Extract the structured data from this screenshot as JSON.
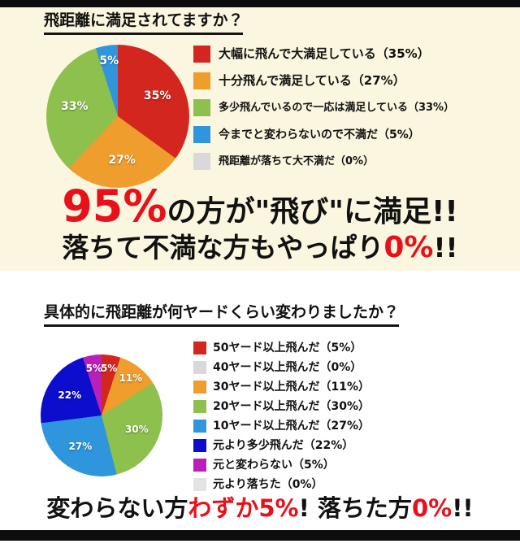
{
  "colors": {
    "accent_red": "#e8101a",
    "cream_background": "#fbf6df",
    "bar_black": "#0d0d0d"
  },
  "chart_data": [
    {
      "type": "pie",
      "title": "飛距離に満足されてますか？",
      "legend_position": "right",
      "slices": [
        {
          "label": "大幅に飛んで大満足している（35%）",
          "value": 35,
          "color": "#d3261f",
          "pct_label": "35%",
          "label_size": 15
        },
        {
          "label": "十分飛んで満足している（27%）",
          "value": 27,
          "color": "#ef9d2c",
          "pct_label": "27%",
          "label_size": 15
        },
        {
          "label": "多少飛んでいるので一応は満足している（33%）",
          "value": 33,
          "color": "#8ec04e",
          "pct_label": "33%",
          "label_size": 13
        },
        {
          "label": "今までと変わらないので不満だ（5%）",
          "value": 5,
          "color": "#2f96dd",
          "pct_label": "5%",
          "label_size": 14
        },
        {
          "label": "飛距離が落ちて大不満だ（0%）",
          "value": 0,
          "color": "#d9d9d9",
          "pct_label": null,
          "label_size": 13
        }
      ]
    },
    {
      "type": "pie",
      "title": "具体的に飛距離が何ヤードくらい変わりましたか？",
      "legend_position": "right",
      "slices": [
        {
          "label": "50ヤード以上飛んだ（5%）",
          "value": 5,
          "color": "#d3261f",
          "pct_label": "5%"
        },
        {
          "label": "40ヤード以上飛んだ（0%）",
          "value": 0,
          "color": "#d9d9d9",
          "pct_label": null
        },
        {
          "label": "30ヤード以上飛んだ（11%）",
          "value": 11,
          "color": "#ef9d2c",
          "pct_label": "11%"
        },
        {
          "label": "20ヤード以上飛んだ（30%）",
          "value": 30,
          "color": "#8ec04e",
          "pct_label": "30%"
        },
        {
          "label": "10ヤード以上飛んだ（27%）",
          "value": 27,
          "color": "#2f96dd",
          "pct_label": "27%"
        },
        {
          "label": "元より多少飛んだ（22%）",
          "value": 22,
          "color": "#0d0dcd",
          "pct_label": "22%"
        },
        {
          "label": "元と変わらない（5%）",
          "value": 5,
          "color": "#b91fb9",
          "pct_label": "5%"
        },
        {
          "label": "元より落ちた（0%）",
          "value": 0,
          "color": "#e3e3e3",
          "pct_label": null
        }
      ]
    }
  ],
  "headline1": {
    "runs": [
      {
        "text": "95%",
        "color": "#e8101a",
        "size": 54
      },
      {
        "text": "の方が\"飛び\"に満足!!",
        "color": "#111111",
        "size": 36
      }
    ]
  },
  "headline2": {
    "runs": [
      {
        "text": "落ちて不満な方もやっぱり",
        "color": "#111111",
        "size": 33
      },
      {
        "text": "0%",
        "color": "#e8101a",
        "size": 36
      },
      {
        "text": "!!",
        "color": "#111111",
        "size": 33
      }
    ]
  },
  "footer": {
    "runs": [
      {
        "text": "変わらない方",
        "color": "#111111",
        "size": 29
      },
      {
        "text": "わずか5%",
        "color": "#e8101a",
        "size": 29
      },
      {
        "text": "! 落ちた方",
        "color": "#111111",
        "size": 29
      },
      {
        "text": "0%",
        "color": "#e8101a",
        "size": 29
      },
      {
        "text": "!!",
        "color": "#111111",
        "size": 29
      }
    ]
  }
}
